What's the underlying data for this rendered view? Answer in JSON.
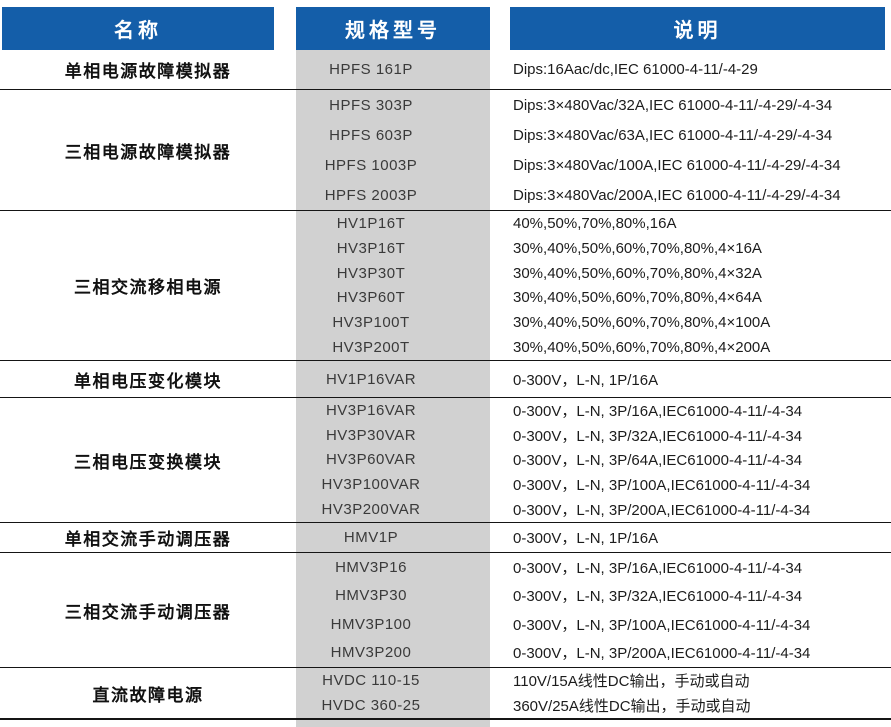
{
  "colors": {
    "header_bg": "#145ea9",
    "header_text": "#ffffff",
    "band_bg": "#d1d1d1",
    "line": "#151515"
  },
  "header": {
    "columns": [
      {
        "label": "名称"
      },
      {
        "label": "规格型号"
      },
      {
        "label": "说明"
      }
    ]
  },
  "sections": [
    {
      "name": "单相电源故障模拟器",
      "rows": [
        {
          "model": "HPFS 161P",
          "desc": "Dips:16Aac/dc,IEC 61000-4-11/-4-29"
        }
      ]
    },
    {
      "name": "三相电源故障模拟器",
      "rows": [
        {
          "model": "HPFS 303P",
          "desc": "Dips:3×480Vac/32A,IEC 61000-4-11/-4-29/-4-34"
        },
        {
          "model": "HPFS 603P",
          "desc": "Dips:3×480Vac/63A,IEC 61000-4-11/-4-29/-4-34"
        },
        {
          "model": "HPFS 1003P",
          "desc": "Dips:3×480Vac/100A,IEC 61000-4-11/-4-29/-4-34"
        },
        {
          "model": "HPFS 2003P",
          "desc": "Dips:3×480Vac/200A,IEC 61000-4-11/-4-29/-4-34"
        }
      ]
    },
    {
      "name": "三相交流移相电源",
      "rows": [
        {
          "model": "HV1P16T",
          "desc": "40%,50%,70%,80%,16A"
        },
        {
          "model": "HV3P16T",
          "desc": "30%,40%,50%,60%,70%,80%,4×16A"
        },
        {
          "model": "HV3P30T",
          "desc": "30%,40%,50%,60%,70%,80%,4×32A"
        },
        {
          "model": "HV3P60T",
          "desc": "30%,40%,50%,60%,70%,80%,4×64A"
        },
        {
          "model": "HV3P100T",
          "desc": "30%,40%,50%,60%,70%,80%,4×100A"
        },
        {
          "model": "HV3P200T",
          "desc": "30%,40%,50%,60%,70%,80%,4×200A"
        }
      ]
    },
    {
      "name": "单相电压变化模块",
      "rows": [
        {
          "model": "HV1P16VAR",
          "desc": "0-300V，L-N, 1P/16A"
        }
      ]
    },
    {
      "name": "三相电压变换模块",
      "rows": [
        {
          "model": "HV3P16VAR",
          "desc": "0-300V，L-N, 3P/16A,IEC61000-4-11/-4-34"
        },
        {
          "model": "HV3P30VAR",
          "desc": "0-300V，L-N, 3P/32A,IEC61000-4-11/-4-34"
        },
        {
          "model": "HV3P60VAR",
          "desc": "0-300V，L-N, 3P/64A,IEC61000-4-11/-4-34"
        },
        {
          "model": "HV3P100VAR",
          "desc": "0-300V，L-N, 3P/100A,IEC61000-4-11/-4-34"
        },
        {
          "model": "HV3P200VAR",
          "desc": "0-300V，L-N, 3P/200A,IEC61000-4-11/-4-34"
        }
      ]
    },
    {
      "name": "单相交流手动调压器",
      "rows": [
        {
          "model": "HMV1P",
          "desc": "0-300V，L-N, 1P/16A"
        }
      ]
    },
    {
      "name": "三相交流手动调压器",
      "rows": [
        {
          "model": "HMV3P16",
          "desc": "0-300V，L-N, 3P/16A,IEC61000-4-11/-4-34"
        },
        {
          "model": "HMV3P30",
          "desc": "0-300V，L-N, 3P/32A,IEC61000-4-11/-4-34"
        },
        {
          "model": "HMV3P100",
          "desc": "0-300V，L-N, 3P/100A,IEC61000-4-11/-4-34"
        },
        {
          "model": "HMV3P200",
          "desc": "0-300V，L-N, 3P/200A,IEC61000-4-11/-4-34"
        }
      ]
    },
    {
      "name": "直流故障电源",
      "rows": [
        {
          "model": "HVDC 110-15",
          "desc": "110V/15A线性DC输出，手动或自动"
        },
        {
          "model": "HVDC 360-25",
          "desc": "360V/25A线性DC输出，手动或自动"
        }
      ]
    }
  ]
}
